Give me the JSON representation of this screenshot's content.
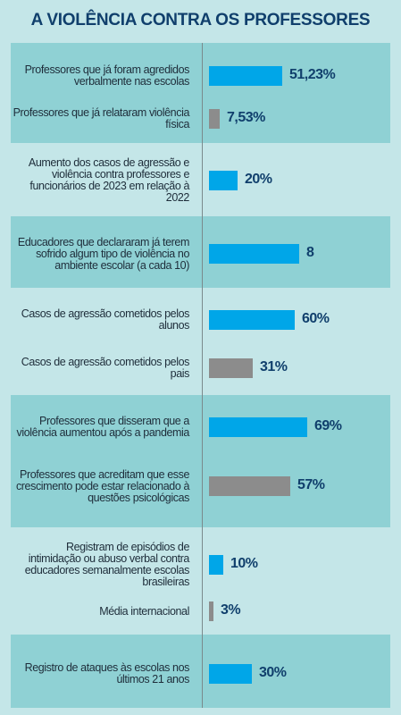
{
  "chart_data": {
    "type": "bar",
    "title": "A VIOLÊNCIA CONTRA OS PROFESSORES",
    "colors": {
      "blue": "#00a6e8",
      "gray": "#8c8c8c",
      "band_dark": "#8fd1d4",
      "band_light": "#c4e6e8",
      "value_text": "#103f6c"
    },
    "groups": [
      {
        "items": [
          {
            "label": "Professores que já foram agredidos verbalmente nas escolas",
            "value": 51.23,
            "display": "51,23%",
            "color": "blue"
          },
          {
            "label": "Professores que já relataram violência física",
            "value": 7.53,
            "display": "7,53%",
            "color": "gray"
          }
        ]
      },
      {
        "items": [
          {
            "label": "Aumento dos casos de agressão e violência contra professores e funcionários de 2023 em relação à 2022",
            "value": 20,
            "display": "20%",
            "color": "blue"
          }
        ]
      },
      {
        "items": [
          {
            "label": "Educadores que declararam já terem sofrido algum tipo de violência no ambiente escolar (a cada 10)",
            "value": 8,
            "display": "8",
            "color": "blue"
          }
        ]
      },
      {
        "items": [
          {
            "label": "Casos de agressão cometidos pelos alunos",
            "value": 60,
            "display": "60%",
            "color": "blue"
          },
          {
            "label": "Casos de agressão cometidos pelos pais",
            "value": 31,
            "display": "31%",
            "color": "gray"
          }
        ]
      },
      {
        "items": [
          {
            "label": "Professores que disseram que a violência aumentou após a pandemia",
            "value": 69,
            "display": "69%",
            "color": "blue"
          },
          {
            "label": "Professores que acreditam que esse crescimento pode estar relacionado à questões psicológicas",
            "value": 57,
            "display": "57%",
            "color": "gray"
          }
        ]
      },
      {
        "items": [
          {
            "label": "Registram de episódios de intimidação ou abuso verbal contra educadores semanalmente escolas brasileiras",
            "value": 10,
            "display": "10%",
            "color": "blue"
          },
          {
            "label": "Média internacional",
            "value": 3,
            "display": "3%",
            "color": "gray"
          }
        ]
      },
      {
        "items": [
          {
            "label": "Registro de ataques às escolas nos últimos 21 anos",
            "value": 30,
            "display": "30%",
            "color": "blue"
          }
        ]
      }
    ]
  }
}
